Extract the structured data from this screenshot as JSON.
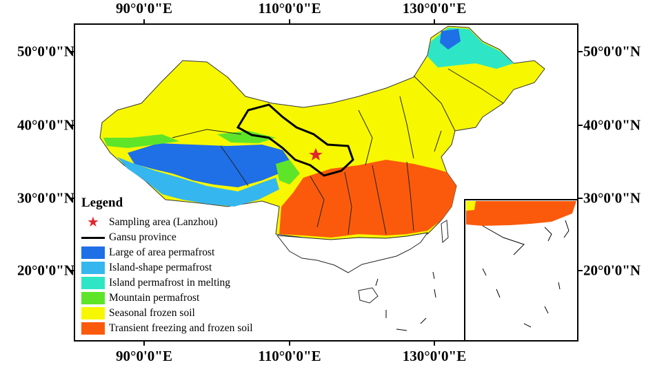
{
  "axes": {
    "top_ticks": [
      "90°0'0\"E",
      "110°0'0\"E",
      "130°0'0\"E"
    ],
    "bottom_ticks": [
      "90°0'0\"E",
      "110°0'0\"E",
      "130°0'0\"E"
    ],
    "left_ticks": [
      "50°0'0\"N",
      "40°0'0\"N",
      "30°0'0\"N",
      "20°0'0\"N"
    ],
    "right_ticks": [
      "50°0'0\"N",
      "40°0'0\"N",
      "30°0'0\"N",
      "20°0'0\"N"
    ]
  },
  "legend": {
    "title": "Legend",
    "items": [
      {
        "label": "Sampling area (Lanzhou)",
        "symbol": "star",
        "color": "#e0262d"
      },
      {
        "label": "Gansu province",
        "symbol": "line",
        "color": "#000000"
      },
      {
        "label": "Large of area permafrost",
        "symbol": "fill",
        "color": "#1f6fe6"
      },
      {
        "label": "Island-shape permafrost",
        "symbol": "fill",
        "color": "#35b6ee"
      },
      {
        "label": "Island permafrost in melting",
        "symbol": "fill",
        "color": "#2ee6c6"
      },
      {
        "label": "Mountain permafrost",
        "symbol": "fill",
        "color": "#5ee52a"
      },
      {
        "label": "Seasonal frozen soil",
        "symbol": "fill",
        "color": "#f7f700"
      },
      {
        "label": "Transient freezing and frozen soil",
        "symbol": "fill",
        "color": "#fb5a0c"
      }
    ]
  }
}
